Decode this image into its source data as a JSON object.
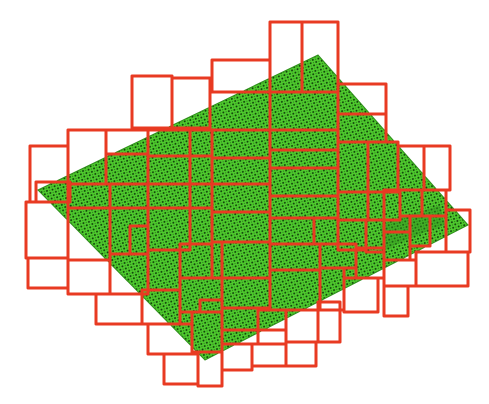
{
  "figure": {
    "plane_color": "#4fcb2e",
    "plane_dot_color": "#0e3d08",
    "plane_highlight_color": "#7fe05c",
    "box_color": "#e83a22",
    "background": "#ffffff",
    "box_count": 89
  }
}
